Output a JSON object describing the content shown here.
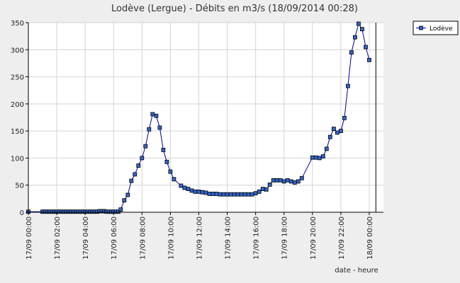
{
  "chart_data": {
    "type": "line",
    "title": "Lodève (Lergue) - Débits en m3/s (18/09/2014 00:28)",
    "xlabel": "date - heure",
    "ylabel": "",
    "ylim": [
      0,
      350
    ],
    "xlim": [
      "17/09 00:00",
      "18/09 01:00"
    ],
    "y_ticks": [
      "0",
      "50",
      "100",
      "150",
      "200",
      "250",
      "300",
      "350"
    ],
    "x_ticks": [
      "17/09 00:00",
      "17/09 02:00",
      "17/09 04:00",
      "17/09 06:00",
      "17/09 08:00",
      "17/09 10:00",
      "17/09 12:00",
      "17/09 14:00",
      "17/09 16:00",
      "17/09 18:00",
      "17/09 20:00",
      "17/09 22:00",
      "18/09 00:00"
    ],
    "grid": true,
    "legend_position": "top-right",
    "colors": {
      "line": "#000099",
      "marker": "#3366cc",
      "grid": "#d4d4d4",
      "background": "#eeeeee",
      "plot": "#ffffff",
      "now_line": "#000000"
    },
    "now_marker": "18/09 00:28",
    "series": [
      {
        "name": "Lodève",
        "points": [
          [
            "17/09 00:00",
            1
          ],
          [
            "17/09 01:00",
            1
          ],
          [
            "17/09 01:10",
            1
          ],
          [
            "17/09 01:20",
            1
          ],
          [
            "17/09 01:30",
            1
          ],
          [
            "17/09 01:40",
            1
          ],
          [
            "17/09 01:50",
            1
          ],
          [
            "17/09 02:00",
            1
          ],
          [
            "17/09 02:10",
            1
          ],
          [
            "17/09 02:20",
            1
          ],
          [
            "17/09 02:30",
            1
          ],
          [
            "17/09 02:40",
            1
          ],
          [
            "17/09 02:50",
            1
          ],
          [
            "17/09 03:00",
            1
          ],
          [
            "17/09 03:10",
            1
          ],
          [
            "17/09 03:20",
            1
          ],
          [
            "17/09 03:30",
            1
          ],
          [
            "17/09 03:40",
            1
          ],
          [
            "17/09 03:50",
            1
          ],
          [
            "17/09 04:00",
            1
          ],
          [
            "17/09 04:10",
            1
          ],
          [
            "17/09 04:20",
            1
          ],
          [
            "17/09 04:30",
            1
          ],
          [
            "17/09 04:40",
            1
          ],
          [
            "17/09 04:50",
            1
          ],
          [
            "17/09 05:00",
            2
          ],
          [
            "17/09 05:10",
            2
          ],
          [
            "17/09 05:20",
            2
          ],
          [
            "17/09 05:30",
            1
          ],
          [
            "17/09 05:40",
            1
          ],
          [
            "17/09 05:50",
            1
          ],
          [
            "17/09 06:00",
            1
          ],
          [
            "17/09 06:10",
            1
          ],
          [
            "17/09 06:20",
            1
          ],
          [
            "17/09 06:30",
            5
          ],
          [
            "17/09 06:45",
            22
          ],
          [
            "17/09 07:00",
            32
          ],
          [
            "17/09 07:15",
            58
          ],
          [
            "17/09 07:30",
            70
          ],
          [
            "17/09 07:45",
            86
          ],
          [
            "17/09 08:00",
            100
          ],
          [
            "17/09 08:15",
            122
          ],
          [
            "17/09 08:30",
            153
          ],
          [
            "17/09 08:45",
            181
          ],
          [
            "17/09 09:00",
            178
          ],
          [
            "17/09 09:15",
            156
          ],
          [
            "17/09 09:30",
            115
          ],
          [
            "17/09 09:45",
            93
          ],
          [
            "17/09 10:00",
            75
          ],
          [
            "17/09 10:15",
            61
          ],
          [
            "17/09 10:45",
            49
          ],
          [
            "17/09 11:00",
            45
          ],
          [
            "17/09 11:15",
            43
          ],
          [
            "17/09 11:30",
            40
          ],
          [
            "17/09 11:45",
            38
          ],
          [
            "17/09 12:00",
            38
          ],
          [
            "17/09 12:15",
            37
          ],
          [
            "17/09 12:30",
            36
          ],
          [
            "17/09 12:45",
            34
          ],
          [
            "17/09 13:00",
            34
          ],
          [
            "17/09 13:15",
            34
          ],
          [
            "17/09 13:30",
            33
          ],
          [
            "17/09 13:45",
            33
          ],
          [
            "17/09 14:00",
            33
          ],
          [
            "17/09 14:15",
            33
          ],
          [
            "17/09 14:30",
            33
          ],
          [
            "17/09 14:45",
            33
          ],
          [
            "17/09 15:00",
            33
          ],
          [
            "17/09 15:15",
            33
          ],
          [
            "17/09 15:30",
            33
          ],
          [
            "17/09 15:45",
            33
          ],
          [
            "17/09 16:00",
            35
          ],
          [
            "17/09 16:15",
            38
          ],
          [
            "17/09 16:30",
            43
          ],
          [
            "17/09 16:45",
            42
          ],
          [
            "17/09 17:00",
            51
          ],
          [
            "17/09 17:15",
            59
          ],
          [
            "17/09 17:30",
            59
          ],
          [
            "17/09 17:45",
            59
          ],
          [
            "17/09 18:00",
            57
          ],
          [
            "17/09 18:15",
            59
          ],
          [
            "17/09 18:30",
            57
          ],
          [
            "17/09 18:45",
            55
          ],
          [
            "17/09 19:00",
            57
          ],
          [
            "17/09 19:15",
            63
          ],
          [
            "17/09 20:00",
            101
          ],
          [
            "17/09 20:15",
            101
          ],
          [
            "17/09 20:30",
            100
          ],
          [
            "17/09 20:45",
            103
          ],
          [
            "17/09 21:00",
            117
          ],
          [
            "17/09 21:15",
            139
          ],
          [
            "17/09 21:30",
            154
          ],
          [
            "17/09 21:45",
            147
          ],
          [
            "17/09 22:00",
            150
          ],
          [
            "17/09 22:15",
            174
          ],
          [
            "17/09 22:30",
            233
          ],
          [
            "17/09 22:45",
            295
          ],
          [
            "17/09 23:00",
            323
          ],
          [
            "17/09 23:15",
            348
          ],
          [
            "17/09 23:30",
            338
          ],
          [
            "17/09 23:45",
            305
          ],
          [
            "18/09 00:00",
            281
          ]
        ]
      }
    ]
  }
}
